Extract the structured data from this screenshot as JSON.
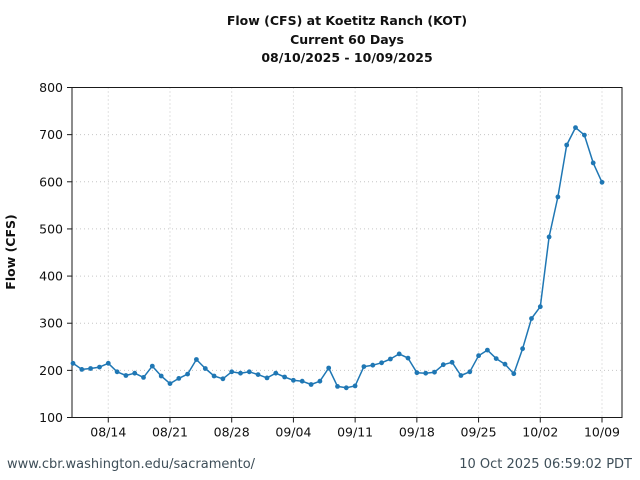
{
  "chart_data": {
    "type": "line",
    "title_lines": [
      "Flow (CFS) at Koetitz Ranch (KOT)",
      "Current 60 Days",
      "08/10/2025 - 10/09/2025"
    ],
    "ylabel": "Flow (CFS)",
    "ylim": [
      100,
      800
    ],
    "yticks": [
      100,
      200,
      300,
      400,
      500,
      600,
      700,
      800
    ],
    "grid": true,
    "legend": "none",
    "line_color": "#1f77b4",
    "xtick_labels": [
      "08/14",
      "08/21",
      "08/28",
      "09/04",
      "09/11",
      "09/18",
      "09/25",
      "10/02",
      "10/09"
    ],
    "xtick_day_indices": [
      4,
      11,
      18,
      25,
      32,
      39,
      46,
      53,
      60
    ],
    "x_dates": [
      "08/10",
      "08/11",
      "08/12",
      "08/13",
      "08/14",
      "08/15",
      "08/16",
      "08/17",
      "08/18",
      "08/19",
      "08/20",
      "08/21",
      "08/22",
      "08/23",
      "08/24",
      "08/25",
      "08/26",
      "08/27",
      "08/28",
      "08/29",
      "08/30",
      "08/31",
      "09/01",
      "09/02",
      "09/03",
      "09/04",
      "09/05",
      "09/06",
      "09/07",
      "09/08",
      "09/09",
      "09/10",
      "09/11",
      "09/12",
      "09/13",
      "09/14",
      "09/15",
      "09/16",
      "09/17",
      "09/18",
      "09/19",
      "09/20",
      "09/21",
      "09/22",
      "09/23",
      "09/24",
      "09/25",
      "09/26",
      "09/27",
      "09/28",
      "09/29",
      "09/30",
      "10/01",
      "10/02",
      "10/03",
      "10/04",
      "10/05",
      "10/06",
      "10/07",
      "10/08",
      "10/09"
    ],
    "values": [
      215,
      202,
      204,
      207,
      215,
      197,
      189,
      194,
      185,
      209,
      188,
      172,
      183,
      192,
      223,
      204,
      188,
      182,
      197,
      194,
      197,
      191,
      184,
      194,
      186,
      179,
      177,
      170,
      177,
      205,
      166,
      163,
      167,
      208,
      211,
      216,
      224,
      235,
      226,
      195,
      194,
      196,
      212,
      217,
      189,
      197,
      231,
      243,
      225,
      213,
      193,
      246,
      310,
      335,
      483,
      568,
      678,
      715,
      699,
      640,
      599
    ]
  },
  "footer": {
    "url": "www.cbr.washington.edu/sacramento/",
    "timestamp": "10 Oct 2025 06:59:02 PDT"
  }
}
